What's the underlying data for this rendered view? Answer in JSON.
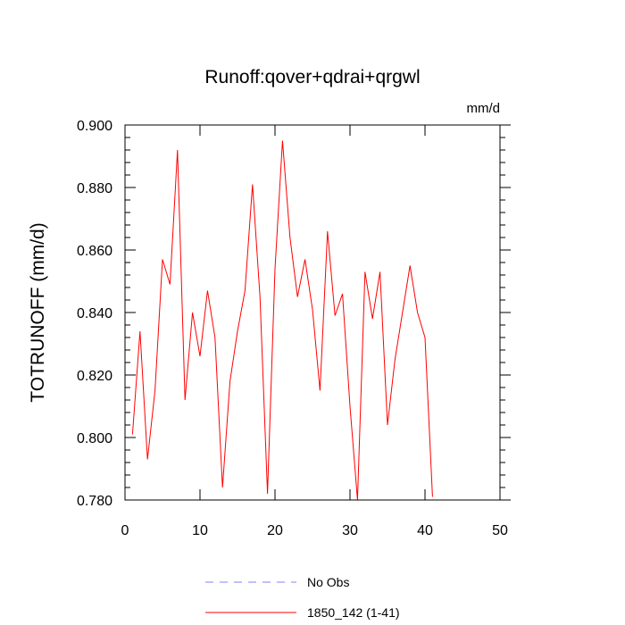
{
  "chart_data": {
    "type": "line",
    "title": "Runoff:qover+qdrai+qrgwl",
    "units_label": "mm/d",
    "xlabel": "",
    "ylabel": "TOTRUNOFF  (mm/d)",
    "xlim": [
      0,
      50
    ],
    "ylim": [
      0.78,
      0.9
    ],
    "xticks": [
      "0",
      "10",
      "20",
      "30",
      "40",
      "50"
    ],
    "yticks": [
      "0.780",
      "0.800",
      "0.820",
      "0.840",
      "0.860",
      "0.880",
      "0.900"
    ],
    "grid": false,
    "legend_position": "bottom",
    "series": [
      {
        "name": "No Obs",
        "color": "#8080ff",
        "dash": true,
        "x": [],
        "values": []
      },
      {
        "name": "1850_142 (1-41)",
        "color": "#ff0000",
        "dash": false,
        "x": [
          1,
          2,
          3,
          4,
          5,
          6,
          7,
          8,
          9,
          10,
          11,
          12,
          13,
          14,
          15,
          16,
          17,
          18,
          19,
          20,
          21,
          22,
          23,
          24,
          25,
          26,
          27,
          28,
          29,
          30,
          31,
          32,
          33,
          34,
          35,
          36,
          37,
          38,
          39,
          40,
          41
        ],
        "values": [
          0.801,
          0.834,
          0.793,
          0.815,
          0.857,
          0.849,
          0.892,
          0.812,
          0.84,
          0.826,
          0.847,
          0.832,
          0.784,
          0.818,
          0.834,
          0.847,
          0.881,
          0.845,
          0.782,
          0.854,
          0.895,
          0.864,
          0.845,
          0.857,
          0.841,
          0.815,
          0.866,
          0.839,
          0.846,
          0.81,
          0.78,
          0.853,
          0.838,
          0.853,
          0.804,
          0.825,
          0.84,
          0.855,
          0.84,
          0.832,
          0.781
        ]
      }
    ]
  }
}
